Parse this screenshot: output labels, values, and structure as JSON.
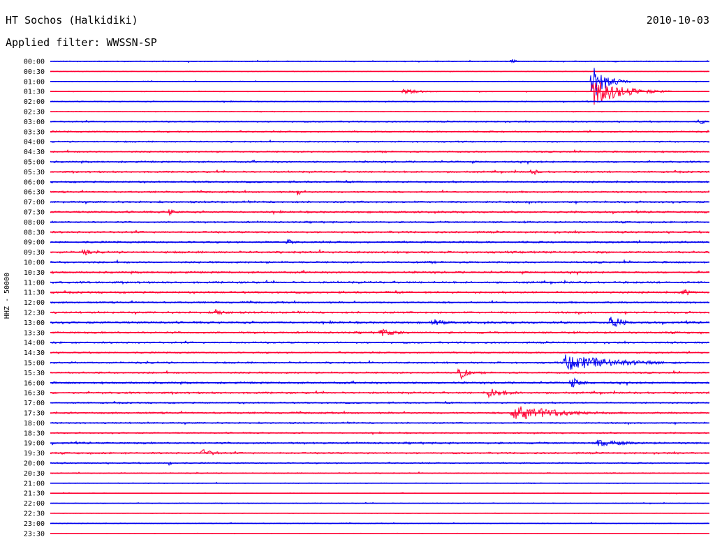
{
  "header": {
    "station": "HT Sochos (Halkidiki)",
    "date": "2010-10-03",
    "filter": "Applied filter: WWSSN-SP"
  },
  "chart_data": {
    "type": "line",
    "title": "HT Sochos (Halkidiki)",
    "subtitle": "Applied filter: WWSSN-SP",
    "ylabel": "HHZ - 50000",
    "xlabel": "",
    "rows": [
      "00:00",
      "00:30",
      "01:00",
      "01:30",
      "02:00",
      "02:30",
      "03:00",
      "03:30",
      "04:00",
      "04:30",
      "05:00",
      "05:30",
      "06:00",
      "06:30",
      "07:00",
      "07:30",
      "08:00",
      "08:30",
      "09:00",
      "09:30",
      "10:00",
      "10:30",
      "11:00",
      "11:30",
      "12:00",
      "12:30",
      "13:00",
      "13:30",
      "14:00",
      "14:30",
      "15:00",
      "15:30",
      "16:00",
      "16:30",
      "17:00",
      "17:30",
      "18:00",
      "18:30",
      "19:00",
      "19:30",
      "20:00",
      "20:30",
      "21:00",
      "21:30",
      "22:00",
      "22:30",
      "23:00",
      "23:30"
    ],
    "colors": [
      "#0000ee",
      "#ff0033"
    ],
    "grid": false,
    "legend": "none",
    "noise_levels": [
      0.6,
      0.4,
      0.5,
      0.5,
      0.6,
      0.5,
      0.8,
      0.9,
      0.8,
      0.9,
      1.0,
      1.0,
      1.0,
      1.0,
      1.1,
      1.1,
      1.0,
      1.1,
      1.1,
      1.2,
      1.1,
      1.1,
      1.1,
      1.1,
      1.0,
      1.1,
      1.2,
      1.1,
      1.0,
      0.9,
      1.0,
      1.0,
      1.1,
      1.1,
      0.9,
      1.0,
      0.9,
      0.8,
      1.1,
      1.0,
      0.8,
      0.6,
      0.5,
      0.4,
      0.5,
      0.3,
      0.5,
      0.3
    ],
    "events": [
      {
        "row": 2,
        "t": 0.821,
        "amp": 30,
        "dur": 0.02
      },
      {
        "row": 3,
        "t": 0.822,
        "amp": 22,
        "dur": 0.04
      },
      {
        "row": 3,
        "t": 0.535,
        "amp": 4,
        "dur": 0.03
      },
      {
        "row": 0,
        "t": 0.7,
        "amp": 5,
        "dur": 0.006
      },
      {
        "row": 6,
        "t": 0.985,
        "amp": 5,
        "dur": 0.01
      },
      {
        "row": 11,
        "t": 0.73,
        "amp": 6,
        "dur": 0.01
      },
      {
        "row": 13,
        "t": 0.375,
        "amp": 7,
        "dur": 0.006
      },
      {
        "row": 15,
        "t": 0.18,
        "amp": 6,
        "dur": 0.01
      },
      {
        "row": 18,
        "t": 0.36,
        "amp": 5,
        "dur": 0.01
      },
      {
        "row": 19,
        "t": 0.05,
        "amp": 6,
        "dur": 0.01
      },
      {
        "row": 23,
        "t": 0.96,
        "amp": 8,
        "dur": 0.01
      },
      {
        "row": 25,
        "t": 0.25,
        "amp": 5,
        "dur": 0.02
      },
      {
        "row": 26,
        "t": 0.85,
        "amp": 13,
        "dur": 0.015
      },
      {
        "row": 26,
        "t": 0.58,
        "amp": 6,
        "dur": 0.02
      },
      {
        "row": 27,
        "t": 0.5,
        "amp": 6,
        "dur": 0.03
      },
      {
        "row": 30,
        "t": 0.78,
        "amp": 12,
        "dur": 0.08
      },
      {
        "row": 31,
        "t": 0.62,
        "amp": 14,
        "dur": 0.01
      },
      {
        "row": 32,
        "t": 0.79,
        "amp": 9,
        "dur": 0.015
      },
      {
        "row": 33,
        "t": 0.665,
        "amp": 7,
        "dur": 0.03
      },
      {
        "row": 35,
        "t": 0.7,
        "amp": 12,
        "dur": 0.07
      },
      {
        "row": 39,
        "t": 0.23,
        "amp": 6,
        "dur": 0.02
      },
      {
        "row": 40,
        "t": 0.18,
        "amp": 6,
        "dur": 0.005
      },
      {
        "row": 38,
        "t": 0.83,
        "amp": 5,
        "dur": 0.05
      }
    ]
  }
}
